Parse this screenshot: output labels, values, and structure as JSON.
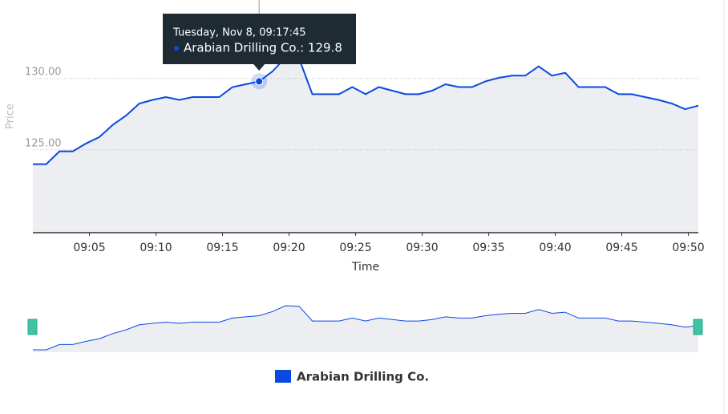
{
  "chart_data": {
    "type": "line",
    "x_label": "Time",
    "y_label": "Price",
    "x": [
      "09:00:45",
      "09:01:45",
      "09:02:45",
      "09:03:45",
      "09:04:45",
      "09:05:45",
      "09:06:45",
      "09:07:45",
      "09:08:45",
      "09:09:45",
      "09:10:45",
      "09:11:45",
      "09:12:45",
      "09:13:45",
      "09:14:45",
      "09:15:45",
      "09:16:45",
      "09:17:45",
      "09:18:45",
      "09:19:45",
      "09:20:45",
      "09:21:45",
      "09:22:45",
      "09:23:45",
      "09:24:45",
      "09:25:45",
      "09:26:45",
      "09:27:45",
      "09:28:45",
      "09:29:45",
      "09:30:45",
      "09:31:45",
      "09:32:45",
      "09:33:45",
      "09:34:45",
      "09:35:45",
      "09:36:45",
      "09:37:45",
      "09:38:45",
      "09:39:45",
      "09:40:45",
      "09:41:45",
      "09:42:45",
      "09:43:45",
      "09:44:45",
      "09:45:45",
      "09:46:45",
      "09:47:45",
      "09:48:45",
      "09:49:45",
      "09:50:45"
    ],
    "series": [
      {
        "name": "Arabian Drilling Co.",
        "color": "#0b49e0",
        "values": [
          124.0,
          124.0,
          124.9,
          124.9,
          125.45,
          125.9,
          126.75,
          127.4,
          128.25,
          128.5,
          128.7,
          128.5,
          128.7,
          128.7,
          128.7,
          129.4,
          129.6,
          129.8,
          130.5,
          131.5,
          131.4,
          128.9,
          128.9,
          128.9,
          129.4,
          128.9,
          129.4,
          129.15,
          128.9,
          128.9,
          129.15,
          129.6,
          129.4,
          129.4,
          129.8,
          130.05,
          130.2,
          130.2,
          130.85,
          130.2,
          130.4,
          129.4,
          129.4,
          129.4,
          128.9,
          128.9,
          128.7,
          128.5,
          128.25,
          127.85,
          128.1
        ]
      }
    ],
    "xlim": [
      "09:00:45",
      "09:50:45"
    ],
    "xticks": [
      "09:05",
      "09:10",
      "09:15",
      "09:20",
      "09:25",
      "09:30",
      "09:35",
      "09:40",
      "09:45",
      "09:50"
    ],
    "ylim": [
      119.2,
      135.5
    ],
    "yticks": [
      {
        "value": 125,
        "label": "125.00"
      },
      {
        "value": 130,
        "label": "130.00"
      }
    ],
    "grid": true,
    "tooltip": {
      "header": "Tuesday, Nov 8, 09:17:45",
      "label": "Arabian Drilling Co.: 129.8",
      "index": 17
    }
  }
}
